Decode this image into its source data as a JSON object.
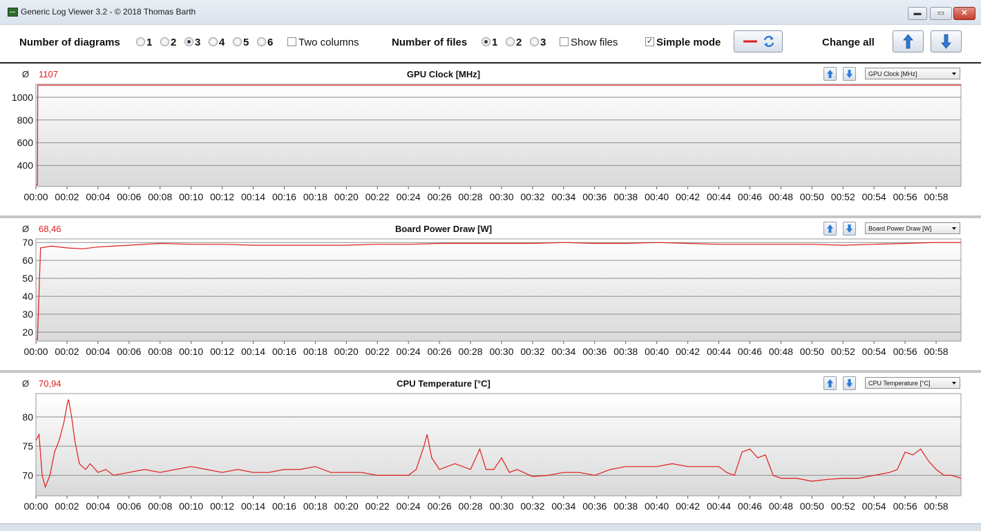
{
  "window": {
    "title": "Generic Log Viewer 3.2 - © 2018 Thomas Barth",
    "min": "▬",
    "max": "▭",
    "close": "✕"
  },
  "toolbar": {
    "num_diagrams_label": "Number of diagrams",
    "diagram_options": [
      "1",
      "2",
      "3",
      "4",
      "5",
      "6"
    ],
    "diagram_selected": "3",
    "two_columns": "Two columns",
    "num_files_label": "Number of files",
    "file_options": [
      "1",
      "2",
      "3"
    ],
    "file_selected": "1",
    "show_files": "Show files",
    "simple_mode": "Simple mode",
    "simple_mode_checked": true,
    "change_all": "Change all",
    "icons": [
      "red-line-icon",
      "refresh-icon",
      "arrow-up-icon",
      "arrow-down-icon"
    ],
    "accent_color": "#e01b1b"
  },
  "x_ticks": [
    "00:00",
    "00:02",
    "00:04",
    "00:06",
    "00:08",
    "00:10",
    "00:12",
    "00:14",
    "00:16",
    "00:18",
    "00:20",
    "00:22",
    "00:24",
    "00:26",
    "00:28",
    "00:30",
    "00:32",
    "00:34",
    "00:36",
    "00:38",
    "00:40",
    "00:42",
    "00:44",
    "00:46",
    "00:48",
    "00:50",
    "00:52",
    "00:54",
    "00:56",
    "00:58"
  ],
  "panels": [
    {
      "title": "GPU Clock [MHz]",
      "avg_symbol": "Ø",
      "avg": "1107",
      "select": "GPU Clock [MHz]"
    },
    {
      "title": "Board Power Draw [W]",
      "avg_symbol": "Ø",
      "avg": "68,46",
      "select": "Board Power Draw [W]"
    },
    {
      "title": "CPU Temperature [°C]",
      "avg_symbol": "Ø",
      "avg": "70,94",
      "select": "CPU Temperature [°C]"
    }
  ],
  "chart_data": [
    {
      "type": "line",
      "title": "GPU Clock [MHz]",
      "ylim": [
        215,
        1115
      ],
      "yticks": [
        400,
        600,
        800,
        1000
      ],
      "xlim": [
        0,
        59.6
      ],
      "x_unit": "minutes",
      "series": [
        {
          "color": "#e01b1b",
          "points": [
            [
              0,
              230
            ],
            [
              0.1,
              230
            ],
            [
              0.12,
              1107
            ],
            [
              0.2,
              1107
            ],
            [
              59.6,
              1107
            ]
          ]
        }
      ]
    },
    {
      "type": "line",
      "title": "Board Power Draw [W]",
      "ylim": [
        15,
        72
      ],
      "yticks": [
        20,
        30,
        40,
        50,
        60,
        70
      ],
      "xlim": [
        0,
        59.6
      ],
      "x_unit": "minutes",
      "series": [
        {
          "color": "#e01b1b",
          "points": [
            [
              0,
              16
            ],
            [
              0.1,
              16
            ],
            [
              0.3,
              67
            ],
            [
              1,
              68
            ],
            [
              2,
              67
            ],
            [
              3,
              66.5
            ],
            [
              4,
              67.5
            ],
            [
              5,
              68
            ],
            [
              6,
              68.5
            ],
            [
              8,
              69.5
            ],
            [
              10,
              69
            ],
            [
              12,
              69
            ],
            [
              14,
              68.5
            ],
            [
              16,
              68.5
            ],
            [
              18,
              68.5
            ],
            [
              20,
              68.5
            ],
            [
              22,
              69
            ],
            [
              24,
              69
            ],
            [
              26,
              69.5
            ],
            [
              28,
              69.5
            ],
            [
              30,
              69.5
            ],
            [
              32,
              69.5
            ],
            [
              34,
              70
            ],
            [
              36,
              69.5
            ],
            [
              38,
              69.5
            ],
            [
              40,
              70
            ],
            [
              42,
              69.5
            ],
            [
              44,
              69
            ],
            [
              46,
              69
            ],
            [
              48,
              69
            ],
            [
              50,
              69
            ],
            [
              52,
              68.5
            ],
            [
              54,
              69
            ],
            [
              56,
              69.5
            ],
            [
              58,
              70
            ],
            [
              59.6,
              70
            ]
          ]
        }
      ]
    },
    {
      "type": "line",
      "title": "CPU Temperature [°C]",
      "ylim": [
        66.5,
        84
      ],
      "yticks": [
        70,
        75,
        80
      ],
      "xlim": [
        0,
        59.6
      ],
      "x_unit": "minutes",
      "series": [
        {
          "color": "#e01b1b",
          "points": [
            [
              0,
              76
            ],
            [
              0.2,
              77
            ],
            [
              0.4,
              70
            ],
            [
              0.6,
              68
            ],
            [
              0.9,
              70
            ],
            [
              1.2,
              74
            ],
            [
              1.5,
              76
            ],
            [
              1.8,
              79
            ],
            [
              2.0,
              82
            ],
            [
              2.1,
              83
            ],
            [
              2.3,
              80
            ],
            [
              2.5,
              76
            ],
            [
              2.8,
              72
            ],
            [
              3.2,
              71
            ],
            [
              3.5,
              72
            ],
            [
              4,
              70.5
            ],
            [
              4.5,
              71
            ],
            [
              5,
              70
            ],
            [
              6,
              70.5
            ],
            [
              7,
              71
            ],
            [
              8,
              70.5
            ],
            [
              9,
              71
            ],
            [
              10,
              71.5
            ],
            [
              11,
              71
            ],
            [
              12,
              70.5
            ],
            [
              13,
              71
            ],
            [
              14,
              70.5
            ],
            [
              15,
              70.5
            ],
            [
              16,
              71
            ],
            [
              17,
              71
            ],
            [
              18,
              71.5
            ],
            [
              19,
              70.5
            ],
            [
              20,
              70.5
            ],
            [
              21,
              70.5
            ],
            [
              22,
              70
            ],
            [
              23,
              70
            ],
            [
              24,
              70
            ],
            [
              24.5,
              71
            ],
            [
              25,
              75
            ],
            [
              25.2,
              77
            ],
            [
              25.5,
              73
            ],
            [
              26,
              71
            ],
            [
              27,
              72
            ],
            [
              28,
              71
            ],
            [
              28.6,
              74.5
            ],
            [
              29,
              71
            ],
            [
              29.5,
              71
            ],
            [
              30,
              73
            ],
            [
              30.5,
              70.5
            ],
            [
              31,
              71
            ],
            [
              32,
              69.8
            ],
            [
              33,
              70
            ],
            [
              34,
              70.5
            ],
            [
              35,
              70.5
            ],
            [
              36,
              70
            ],
            [
              37,
              71
            ],
            [
              38,
              71.5
            ],
            [
              39,
              71.5
            ],
            [
              40,
              71.5
            ],
            [
              41,
              72
            ],
            [
              42,
              71.5
            ],
            [
              43,
              71.5
            ],
            [
              44,
              71.5
            ],
            [
              44.5,
              70.5
            ],
            [
              45,
              70
            ],
            [
              45.5,
              74
            ],
            [
              46,
              74.5
            ],
            [
              46.5,
              73
            ],
            [
              47,
              73.5
            ],
            [
              47.5,
              70
            ],
            [
              48,
              69.5
            ],
            [
              49,
              69.5
            ],
            [
              50,
              69
            ],
            [
              51,
              69.3
            ],
            [
              52,
              69.5
            ],
            [
              53,
              69.5
            ],
            [
              54,
              70
            ],
            [
              55,
              70.5
            ],
            [
              55.5,
              71
            ],
            [
              56,
              74
            ],
            [
              56.5,
              73.5
            ],
            [
              57,
              74.5
            ],
            [
              57.5,
              72.5
            ],
            [
              58,
              71
            ],
            [
              58.5,
              70
            ],
            [
              59,
              70
            ],
            [
              59.6,
              69.5
            ]
          ]
        }
      ]
    }
  ]
}
